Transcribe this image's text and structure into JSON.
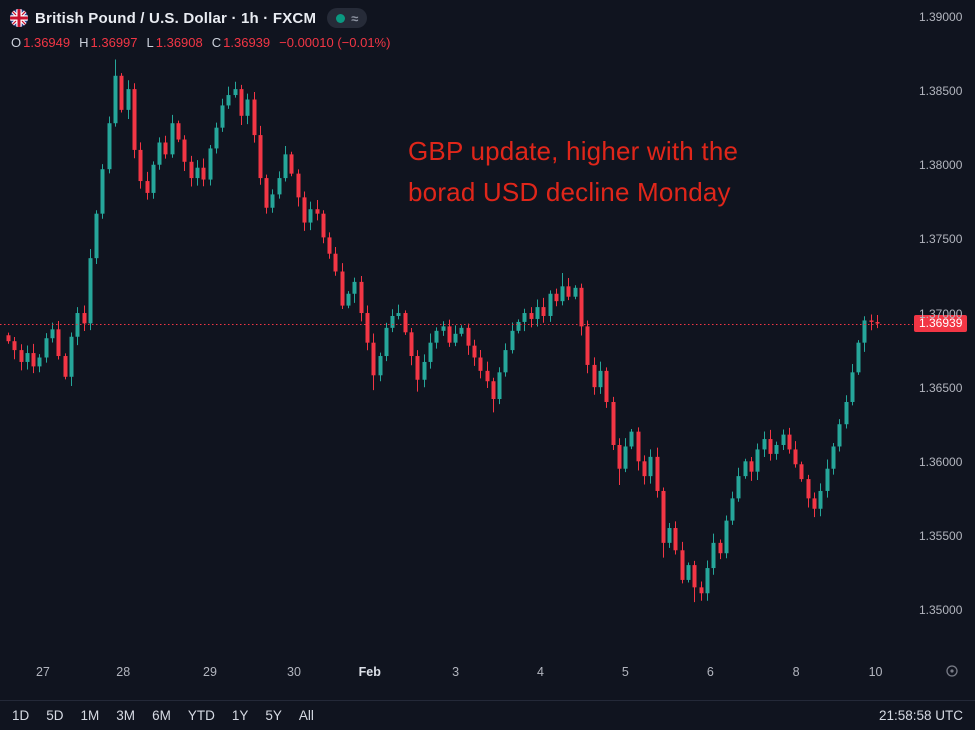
{
  "header": {
    "title": "British Pound / U.S. Dollar · 1h · FXCM",
    "status_pill": "≈",
    "ohlc": {
      "o_label": "O",
      "o": "1.36949",
      "h_label": "H",
      "h": "1.36997",
      "l_label": "L",
      "l": "1.36908",
      "c_label": "C",
      "c": "1.36939",
      "change": "−0.00010 (−0.01%)"
    }
  },
  "annotation": {
    "line1": "GBP update, higher with the",
    "line2": "borad USD decline Monday",
    "color": "#e0261a"
  },
  "price_axis": {
    "ticks": [
      {
        "label": "1.39000",
        "value": 1.39
      },
      {
        "label": "1.38500",
        "value": 1.385
      },
      {
        "label": "1.38000",
        "value": 1.38
      },
      {
        "label": "1.37500",
        "value": 1.375
      },
      {
        "label": "1.37000",
        "value": 1.37
      },
      {
        "label": "1.36500",
        "value": 1.365
      },
      {
        "label": "1.36000",
        "value": 1.36
      },
      {
        "label": "1.35500",
        "value": 1.355
      },
      {
        "label": "1.35000",
        "value": 1.35
      }
    ],
    "current": {
      "label": "1.36939",
      "value": 1.36939
    }
  },
  "time_axis": {
    "labels": [
      {
        "text": "27",
        "f": 0.047
      },
      {
        "text": "28",
        "f": 0.135
      },
      {
        "text": "29",
        "f": 0.23
      },
      {
        "text": "30",
        "f": 0.322
      },
      {
        "text": "Feb",
        "f": 0.405
      },
      {
        "text": "3",
        "f": 0.499
      },
      {
        "text": "4",
        "f": 0.592
      },
      {
        "text": "5",
        "f": 0.685
      },
      {
        "text": "6",
        "f": 0.778
      },
      {
        "text": "8",
        "f": 0.872
      },
      {
        "text": "10",
        "f": 0.959
      }
    ]
  },
  "toolbar": {
    "ranges": [
      "1D",
      "5D",
      "1M",
      "3M",
      "6M",
      "YTD",
      "1Y",
      "5Y",
      "All"
    ],
    "clock": "21:58:58 UTC"
  },
  "chart_data": {
    "type": "candlestick",
    "title": "British Pound / U.S. Dollar",
    "symbol": "GBP/USD",
    "interval": "1h",
    "exchange": "FXCM",
    "ylim": [
      1.3467,
      1.39121
    ],
    "ylabel": "",
    "xlabel": "",
    "current_price": 1.36939,
    "first_open": 1.3686,
    "default_wick": 0.0005,
    "closes": [
      1.3682,
      1.3676,
      1.3668,
      1.3674,
      1.3665,
      1.3671,
      1.3684,
      1.369,
      1.3672,
      1.3658,
      1.3685,
      1.3701,
      1.3694,
      1.3738,
      1.3768,
      1.3798,
      1.3829,
      1.3861,
      1.3838,
      1.3852,
      1.3811,
      1.379,
      1.3782,
      1.3801,
      1.3816,
      1.3808,
      1.3829,
      1.3818,
      1.3803,
      1.3792,
      1.3799,
      1.3791,
      1.3812,
      1.3826,
      1.3841,
      1.3848,
      1.3852,
      1.3834,
      1.3845,
      1.3821,
      1.3792,
      1.3772,
      1.3781,
      1.3792,
      1.3808,
      1.3795,
      1.3779,
      1.3762,
      1.3771,
      1.3768,
      1.3752,
      1.3741,
      1.3729,
      1.3706,
      1.3714,
      1.3722,
      1.3701,
      1.3681,
      1.3659,
      1.3672,
      1.3691,
      1.3699,
      1.3701,
      1.3688,
      1.3672,
      1.3656,
      1.3668,
      1.3681,
      1.3689,
      1.3692,
      1.3681,
      1.3687,
      1.3691,
      1.3679,
      1.3671,
      1.3662,
      1.3655,
      1.3643,
      1.3661,
      1.3676,
      1.3689,
      1.3695,
      1.3701,
      1.3697,
      1.3705,
      1.3699,
      1.3714,
      1.3709,
      1.3719,
      1.3712,
      1.3718,
      1.3692,
      1.3666,
      1.3651,
      1.3662,
      1.3641,
      1.3612,
      1.3596,
      1.3611,
      1.3621,
      1.3601,
      1.3591,
      1.3604,
      1.3581,
      1.3546,
      1.3556,
      1.3541,
      1.3521,
      1.3531,
      1.3516,
      1.3512,
      1.3529,
      1.3546,
      1.3539,
      1.3561,
      1.3576,
      1.3591,
      1.3601,
      1.3594,
      1.3609,
      1.3616,
      1.3606,
      1.3612,
      1.3619,
      1.3609,
      1.3599,
      1.3589,
      1.3576,
      1.3569,
      1.3581,
      1.3596,
      1.3611,
      1.3626,
      1.3641,
      1.3661,
      1.3681,
      1.3696,
      1.3695,
      1.36939
    ],
    "wick_overrides": {
      "17": {
        "high": 1.3872
      },
      "19": {
        "high": 1.3858
      },
      "36": {
        "high": 1.3857
      },
      "58": {
        "low": 1.3649
      },
      "65": {
        "low": 1.3648
      },
      "77": {
        "low": 1.3634
      },
      "88": {
        "high": 1.3728
      },
      "97": {
        "low": 1.3585
      },
      "104": {
        "low": 1.3536
      },
      "109": {
        "low": 1.3506
      },
      "110": {
        "low": 1.3507
      }
    },
    "last_candle": {
      "open": 1.36949,
      "high": 1.36997,
      "low": 1.36908,
      "close": 1.36939
    },
    "colors": {
      "up": "#26a69a",
      "down": "#f23645",
      "current_line": "#f23645",
      "background": "#10141f",
      "axis_text": "#b2b5be"
    }
  }
}
